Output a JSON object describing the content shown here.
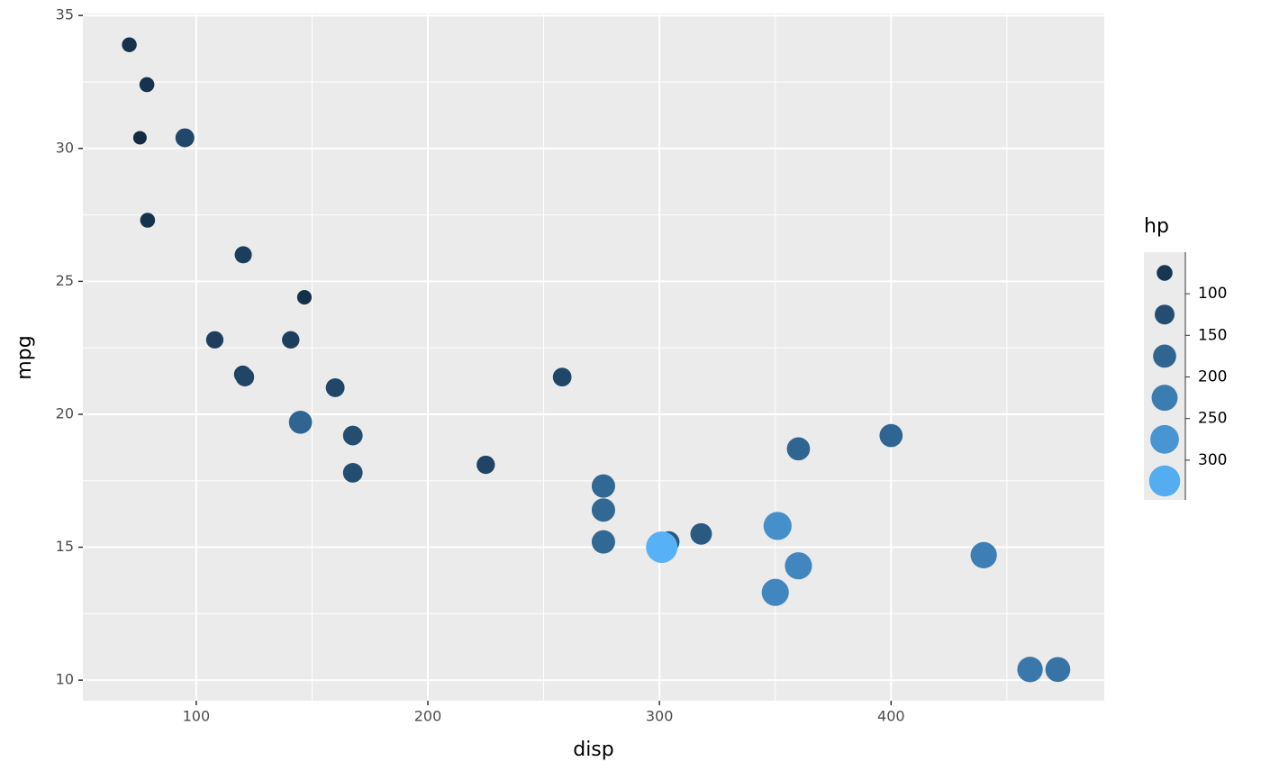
{
  "chart_data": {
    "type": "scatter",
    "x_label": "disp",
    "y_label": "mpg",
    "legend_title": "hp",
    "x": [
      160,
      160,
      108,
      258,
      360,
      225,
      360,
      146.7,
      140.8,
      167.6,
      167.6,
      275.8,
      275.8,
      275.8,
      472,
      460,
      440,
      78.7,
      75.7,
      71.1,
      120.1,
      318,
      304,
      350,
      400,
      79,
      120.3,
      95.1,
      351,
      145,
      301,
      121
    ],
    "values": [
      21,
      21,
      22.8,
      21.4,
      18.7,
      18.1,
      14.3,
      24.4,
      22.8,
      19.2,
      17.8,
      16.4,
      17.3,
      15.2,
      10.4,
      10.4,
      14.7,
      32.4,
      30.4,
      33.9,
      21.5,
      15.5,
      15.2,
      13.3,
      19.2,
      27.3,
      26,
      30.4,
      15.8,
      19.7,
      15,
      21.4
    ],
    "sizes": [
      110,
      110,
      93,
      110,
      175,
      105,
      245,
      62,
      95,
      123,
      123,
      180,
      180,
      180,
      205,
      215,
      230,
      66,
      52,
      65,
      97,
      150,
      150,
      245,
      175,
      66,
      91,
      113,
      264,
      175,
      335,
      109
    ],
    "color_low": "#132B43",
    "color_high": "#56B1F7",
    "xlim": [
      51.05,
      492.05
    ],
    "ylim": [
      9.225,
      35.075
    ],
    "xticks": [
      100,
      200,
      300,
      400
    ],
    "yticks": [
      10,
      15,
      20,
      25,
      30,
      35
    ],
    "xminor": [
      150,
      250,
      350,
      450
    ],
    "yminor": [
      12.5,
      17.5,
      22.5,
      27.5,
      32.5
    ],
    "legend_ticks": [
      100,
      150,
      200,
      250,
      300
    ],
    "grid": true
  }
}
